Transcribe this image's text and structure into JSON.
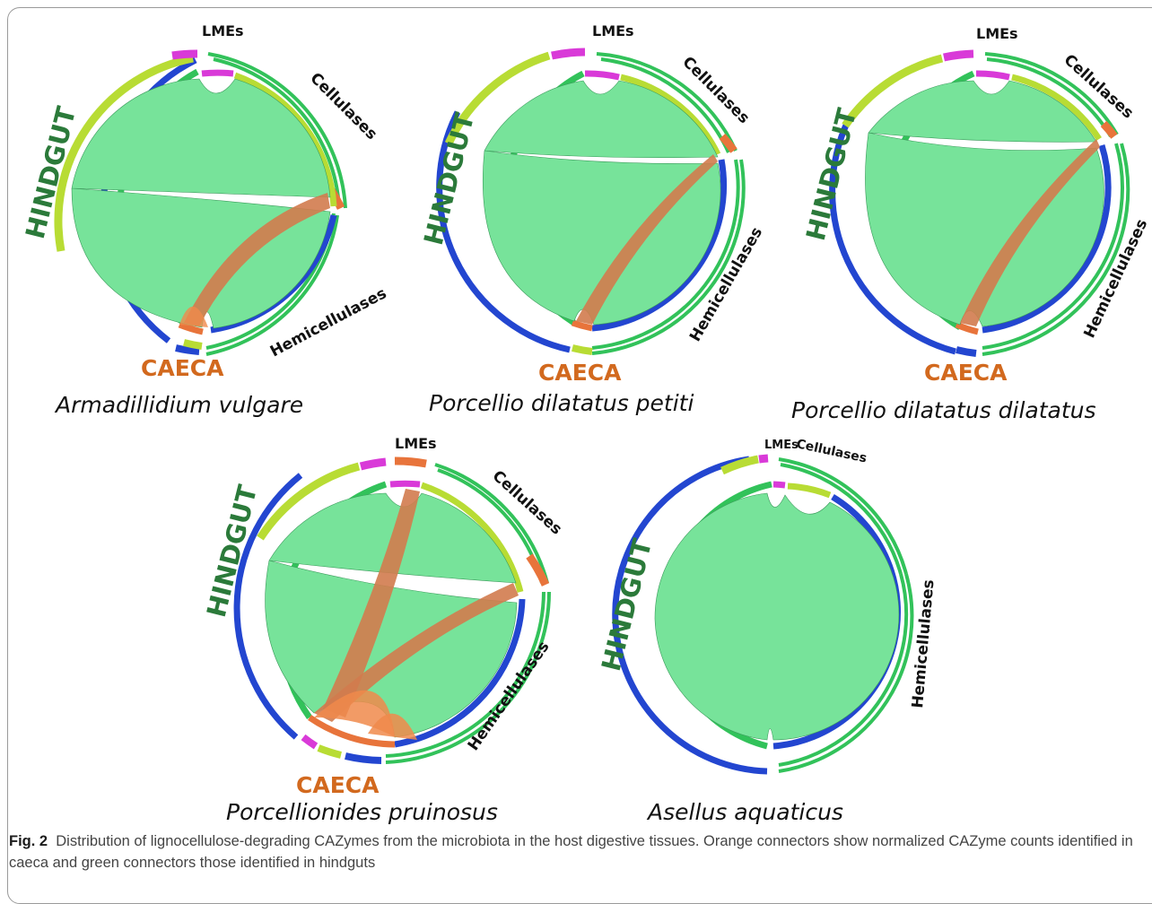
{
  "colors": {
    "hindgut_label": "#2b7a3a",
    "caeca_label": "#d2691e",
    "green_ribbon": "#77e39a",
    "orange_ribbon": "#f08a4b",
    "hindgut_segment": "#32c25a",
    "caeca_segment": "#e8743b",
    "lme_segment": "#d93ad8",
    "cellulase_segment": "#b8dc34",
    "hemicellulase_segment": "#2346d0"
  },
  "labels": {
    "hindgut": "HINDGUT",
    "caeca": "CAECA",
    "lmes": "LMEs",
    "cellulases": "Cellulases",
    "hemicellulases": "Hemicellulases"
  },
  "panels": [
    {
      "species": "Armadillidium vulgare",
      "has_caeca": true
    },
    {
      "species": "Porcellio dilatatus petiti",
      "has_caeca": true
    },
    {
      "species": "Porcellio dilatatus dilatatus",
      "has_caeca": true
    },
    {
      "species": "Porcellionides pruinosus",
      "has_caeca": true
    },
    {
      "species": "Asellus aquaticus",
      "has_caeca": false
    }
  ],
  "caption": {
    "label": "Fig. 2",
    "text": "Distribution of lignocellulose-degrading CAZymes from the microbiota in the host digestive tissues. Orange connectors show normalized CAZyme counts identified in caeca and green connectors those identified in hindguts"
  }
}
